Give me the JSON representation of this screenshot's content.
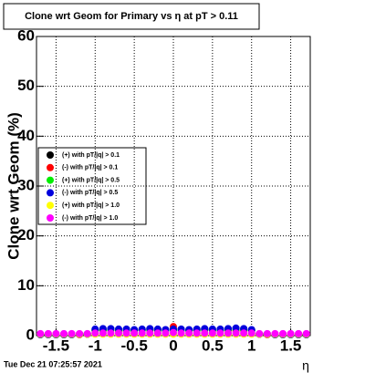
{
  "chart_data": {
    "type": "scatter",
    "title": "Clone wrt Geom for Primary vs  η at pT > 0.11",
    "x_label": "η",
    "y_label": "Clone wrt Geom (%)",
    "footer": "Tue Dec 21 07:25:57 2021",
    "x": [
      -1.7,
      -1.6,
      -1.5,
      -1.4,
      -1.3,
      -1.2,
      -1.1,
      -1.0,
      -0.9,
      -0.8,
      -0.7,
      -0.6,
      -0.5,
      -0.4,
      -0.3,
      -0.2,
      -0.1,
      0,
      0.1,
      0.2,
      0.3,
      0.4,
      0.5,
      0.6,
      0.7,
      0.8,
      0.9,
      1.0,
      1.1,
      1.2,
      1.3,
      1.4,
      1.5,
      1.6,
      1.7
    ],
    "series": [
      {
        "name": "(+) with pT/|q| > 0.1",
        "color": "#000000",
        "values": [
          0.2,
          0.2,
          0.2,
          0.2,
          0.2,
          0.3,
          0.3,
          1.1,
          1.2,
          1.3,
          1.2,
          1.2,
          1.1,
          1.2,
          1.3,
          1.2,
          1.1,
          1.2,
          1.2,
          1.1,
          1.2,
          1.3,
          1.2,
          1.2,
          1.3,
          1.4,
          1.3,
          1.1,
          0.3,
          0.3,
          0.2,
          0.2,
          0.2,
          0.2,
          0.2
        ]
      },
      {
        "name": "(-) with pT/|q| > 0.1",
        "color": "#ff0000",
        "values": [
          0.2,
          0.2,
          0.2,
          0.2,
          0.2,
          0.2,
          0.3,
          1.0,
          1.0,
          1.1,
          1.0,
          1.0,
          1.0,
          1.1,
          1.0,
          1.0,
          1.1,
          1.8,
          1.1,
          1.0,
          1.0,
          1.1,
          1.0,
          1.0,
          1.1,
          1.0,
          1.0,
          1.0,
          0.3,
          0.2,
          0.2,
          0.2,
          0.2,
          0.2,
          0.2
        ]
      },
      {
        "name": "(+) with pT/|q| > 0.5",
        "color": "#00ee00",
        "values": [
          0.2,
          0.2,
          0.2,
          0.2,
          0.2,
          0.3,
          0.3,
          1.1,
          1.1,
          1.2,
          1.1,
          1.1,
          1.0,
          1.1,
          1.2,
          1.1,
          1.0,
          1.1,
          1.1,
          1.0,
          1.1,
          1.2,
          1.1,
          1.1,
          1.2,
          1.3,
          1.2,
          1.0,
          0.3,
          0.3,
          0.2,
          0.2,
          0.2,
          0.2,
          0.2
        ]
      },
      {
        "name": "(-) with pT/|q| > 0.5",
        "color": "#0000dd",
        "values": [
          0.2,
          0.2,
          0.2,
          0.2,
          0.2,
          0.3,
          0.3,
          1.3,
          1.4,
          1.4,
          1.3,
          1.3,
          1.2,
          1.3,
          1.4,
          1.3,
          1.2,
          1.3,
          1.3,
          1.2,
          1.3,
          1.4,
          1.3,
          1.3,
          1.4,
          1.5,
          1.4,
          1.2,
          0.3,
          0.3,
          0.2,
          0.2,
          0.2,
          0.2,
          0.2
        ]
      },
      {
        "name": "(+) with pT/|q| > 1.0",
        "color": "#ffff00",
        "values": [
          0.3,
          0.3,
          0.3,
          0.3,
          0.3,
          0.3,
          0.3,
          0.3,
          0.3,
          0.3,
          0.3,
          0.3,
          0.3,
          0.3,
          0.3,
          0.3,
          0.3,
          0.3,
          0.3,
          0.3,
          0.3,
          0.3,
          0.3,
          0.3,
          0.3,
          0.3,
          0.3,
          0.3,
          0.3,
          0.3,
          0.3,
          0.3,
          0.3,
          0.3,
          0.3
        ]
      },
      {
        "name": "(-) with pT/|q| > 1.0",
        "color": "#ff00ff",
        "values": [
          0.4,
          0.4,
          0.4,
          0.4,
          0.4,
          0.4,
          0.4,
          0.5,
          0.5,
          0.5,
          0.5,
          0.5,
          0.5,
          0.5,
          0.5,
          0.5,
          0.5,
          0.6,
          0.5,
          0.5,
          0.5,
          0.5,
          0.5,
          0.5,
          0.5,
          0.5,
          0.5,
          0.5,
          0.4,
          0.4,
          0.4,
          0.4,
          0.4,
          0.4,
          0.4
        ]
      }
    ],
    "xlim": [
      -1.75,
      1.75
    ],
    "xticks": [
      -1.5,
      -1,
      -0.5,
      0,
      0.5,
      1,
      1.5
    ],
    "ylim": [
      0,
      60
    ],
    "yticks": [
      0,
      10,
      20,
      30,
      40,
      50,
      60
    ],
    "grid": true
  }
}
